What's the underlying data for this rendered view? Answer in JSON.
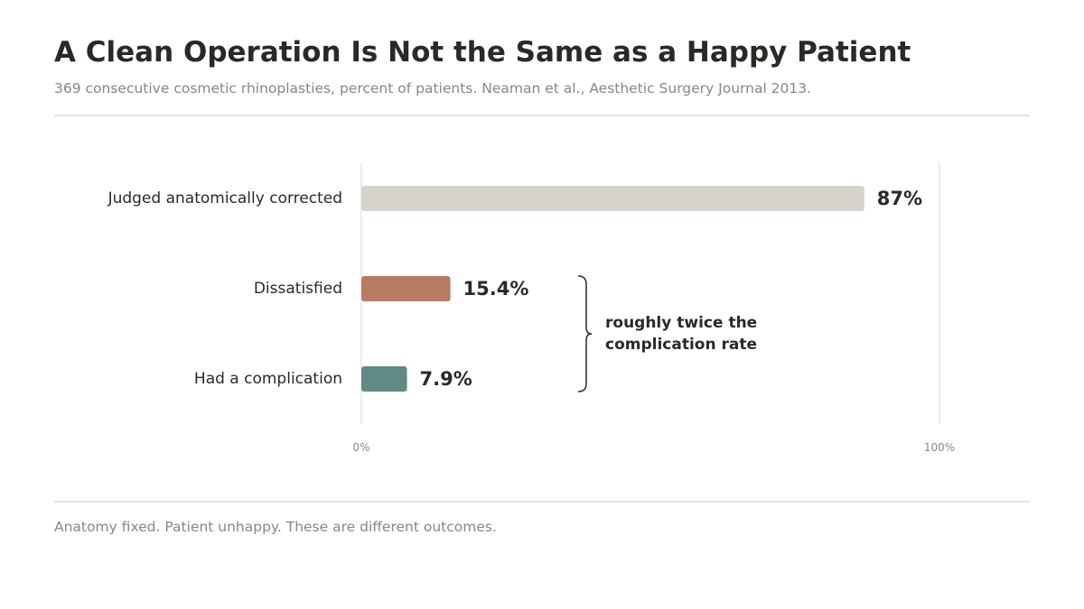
{
  "title": "A Clean Operation Is Not the Same as a Happy Patient",
  "subtitle": "369 consecutive cosmetic rhinoplasties, percent of patients. Neaman et al., Aesthetic Surgery Journal 2013.",
  "footer": "Anatomy fixed. Patient unhappy. These are different outcomes.",
  "chart_data": {
    "type": "bar",
    "orientation": "horizontal",
    "categories": [
      "Judged anatomically corrected",
      "Dissatisfied",
      "Had a complication"
    ],
    "values": [
      87,
      15.4,
      7.9
    ],
    "value_labels": [
      "87%",
      "15.4%",
      "7.9%"
    ],
    "colors": [
      "#d6d3cc",
      "#b87c62",
      "#5f8a86"
    ],
    "xlim": [
      0,
      100
    ],
    "x_ticks": [
      {
        "value": 0,
        "label": "0%"
      },
      {
        "value": 100,
        "label": "100%"
      }
    ],
    "grid": false,
    "annotation": {
      "lines": [
        "roughly twice the",
        "complication rate"
      ],
      "spans_categories": [
        "Dissatisfied",
        "Had a complication"
      ]
    }
  }
}
